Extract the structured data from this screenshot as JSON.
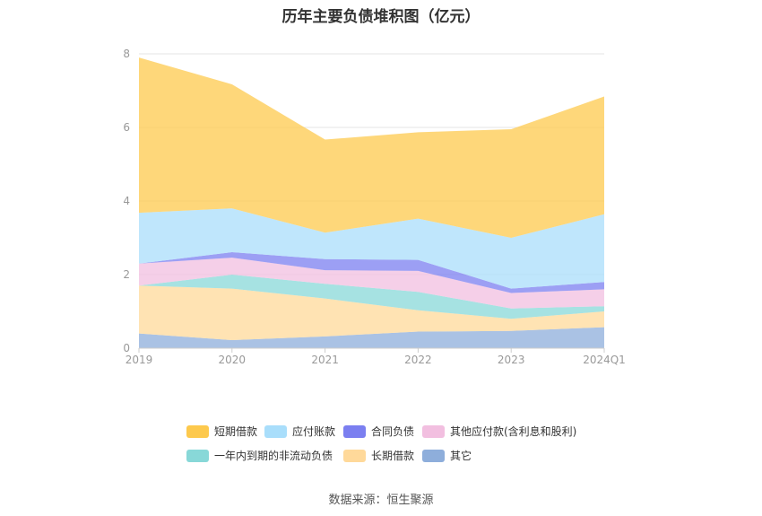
{
  "chart_data": {
    "type": "area",
    "title": "历年主要负债堆积图（亿元）",
    "categories": [
      "2019",
      "2020",
      "2021",
      "2022",
      "2023",
      "2024Q1"
    ],
    "ylim": [
      0,
      8
    ],
    "yticks": [
      "0",
      "2",
      "4",
      "6",
      "8"
    ],
    "grid": true,
    "legend_position": "bottom",
    "series": [
      {
        "name": "其它",
        "color": "#8eaedb",
        "values": [
          0.4,
          0.22,
          0.32,
          0.45,
          0.47,
          0.57
        ]
      },
      {
        "name": "长期借款",
        "color": "#ffd99a",
        "values": [
          1.3,
          1.4,
          1.03,
          0.58,
          0.33,
          0.43
        ]
      },
      {
        "name": "一年内到期的非流动负债",
        "color": "#88d8d8",
        "values": [
          0.0,
          0.38,
          0.4,
          0.5,
          0.28,
          0.14
        ]
      },
      {
        "name": "其他应付款(含利息和股利)",
        "color": "#f2bfe0",
        "values": [
          0.6,
          0.46,
          0.37,
          0.57,
          0.42,
          0.46
        ]
      },
      {
        "name": "合同负债",
        "color": "#7b7ff0",
        "values": [
          0.0,
          0.15,
          0.3,
          0.3,
          0.12,
          0.2
        ]
      },
      {
        "name": "应付账款",
        "color": "#a9defb",
        "values": [
          1.38,
          1.19,
          0.72,
          1.12,
          1.38,
          1.84
        ]
      },
      {
        "name": "短期借款",
        "color": "#fdc94d",
        "values": [
          4.22,
          3.37,
          2.53,
          2.35,
          2.95,
          3.2
        ]
      }
    ],
    "legend_order": [
      6,
      5,
      4,
      3,
      2,
      1,
      0
    ]
  },
  "source_text": "数据来源：恒生聚源"
}
